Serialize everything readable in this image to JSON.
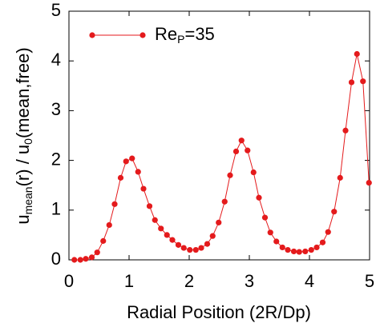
{
  "chart_data": {
    "type": "line",
    "xlabel": "Radial Position (2R/Dp)",
    "ylabel": [
      "u",
      "mean",
      "(r) / u",
      "0",
      "(mean,free)"
    ],
    "x": [
      0.09,
      0.19,
      0.28,
      0.38,
      0.47,
      0.57,
      0.67,
      0.76,
      0.86,
      0.95,
      1.05,
      1.15,
      1.24,
      1.34,
      1.43,
      1.53,
      1.63,
      1.72,
      1.82,
      1.91,
      2.01,
      2.11,
      2.2,
      2.3,
      2.39,
      2.49,
      2.59,
      2.68,
      2.78,
      2.87,
      2.97,
      3.07,
      3.16,
      3.26,
      3.35,
      3.45,
      3.55,
      3.64,
      3.74,
      3.83,
      3.93,
      4.03,
      4.12,
      4.22,
      4.31,
      4.41,
      4.51,
      4.6,
      4.7,
      4.79,
      4.89,
      4.99
    ],
    "series": [
      {
        "name": [
          "Re",
          "P",
          "=35"
        ],
        "color": "#e41a1c",
        "values": [
          0,
          0,
          0.02,
          0.05,
          0.15,
          0.38,
          0.7,
          1.12,
          1.65,
          1.98,
          2.04,
          1.77,
          1.43,
          1.08,
          0.8,
          0.63,
          0.5,
          0.4,
          0.3,
          0.24,
          0.2,
          0.2,
          0.24,
          0.32,
          0.48,
          0.75,
          1.17,
          1.7,
          2.18,
          2.4,
          2.2,
          1.76,
          1.25,
          0.85,
          0.55,
          0.37,
          0.25,
          0.2,
          0.17,
          0.16,
          0.17,
          0.2,
          0.25,
          0.35,
          0.56,
          0.97,
          1.65,
          2.6,
          3.57,
          4.14,
          3.59,
          1.55
        ]
      }
    ],
    "xlim": [
      0,
      5
    ],
    "ylim": [
      0,
      5
    ],
    "xticks": [
      0,
      1,
      2,
      3,
      4,
      5
    ],
    "yticks": [
      0,
      1,
      2,
      3,
      4,
      5
    ],
    "legend": "upper left"
  }
}
